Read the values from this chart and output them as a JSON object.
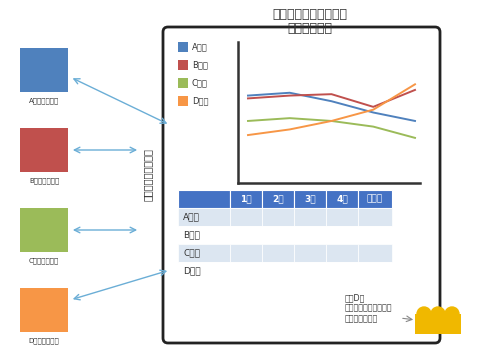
{
  "title_line1": "借金ブロガー返済状況",
  "title_line2": "まとめサイト",
  "bg_color": "#ffffff",
  "blog_labels": [
    "Aさんのブログ",
    "Bさんのブログ",
    "Cさんのブログ",
    "Dさんのブログ"
  ],
  "blog_colors": [
    "#4f81bd",
    "#c0504d",
    "#9bbb59",
    "#f79646"
  ],
  "legend_labels": [
    "Aさん",
    "Bさん",
    "Cさん",
    "Dさん"
  ],
  "line_A": [
    0.62,
    0.64,
    0.58,
    0.5,
    0.44
  ],
  "line_B": [
    0.6,
    0.62,
    0.63,
    0.54,
    0.66
  ],
  "line_C": [
    0.44,
    0.46,
    0.44,
    0.4,
    0.32
  ],
  "line_D": [
    0.34,
    0.38,
    0.44,
    0.52,
    0.7
  ],
  "table_header": [
    "",
    "1月",
    "2月",
    "3月",
    "4月",
    "・・・"
  ],
  "table_rows": [
    "Aさん",
    "Bさん",
    "Cさん",
    "Dさん"
  ],
  "header_color": "#4472c4",
  "row_A_color": "#dce6f1",
  "row_B_color": "#ffffff",
  "row_C_color": "#dce6f1",
  "row_D_color": "#ffffff",
  "arrow_color": "#6baed6",
  "speech_text": "おいD！\nギャンブルしてんじゃ\nねーよ！かす！",
  "people_color": "#f0b800"
}
